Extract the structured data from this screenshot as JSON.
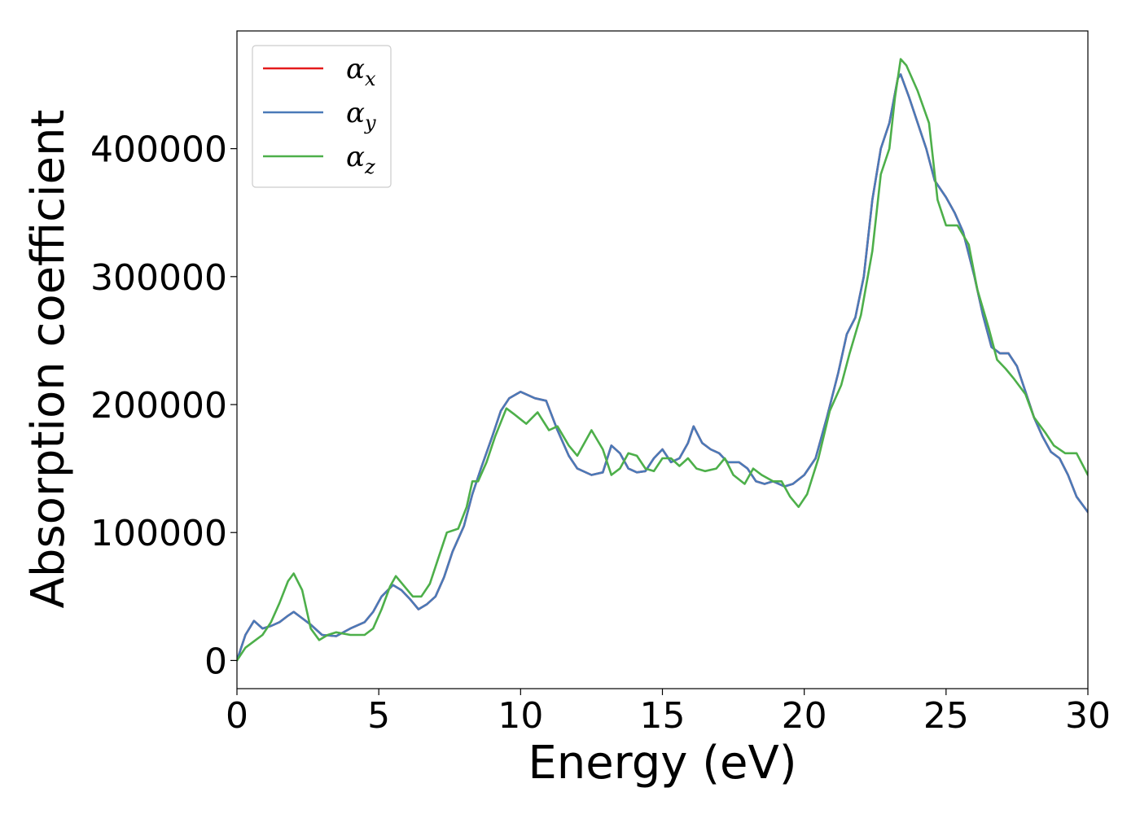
{
  "chart_data": {
    "type": "line",
    "xlabel": "Energy (eV)",
    "ylabel": "Absorption coefficient",
    "xlim": [
      0,
      30
    ],
    "ylim": [
      -22000,
      492000
    ],
    "xticks": [
      {
        "value": 0,
        "label": "0"
      },
      {
        "value": 5,
        "label": "5"
      },
      {
        "value": 10,
        "label": "10"
      },
      {
        "value": 15,
        "label": "15"
      },
      {
        "value": 20,
        "label": "20"
      },
      {
        "value": 25,
        "label": "25"
      },
      {
        "value": 30,
        "label": "30"
      }
    ],
    "yticks": [
      {
        "value": 0,
        "label": "0"
      },
      {
        "value": 100000,
        "label": "100000"
      },
      {
        "value": 200000,
        "label": "200000"
      },
      {
        "value": 300000,
        "label": "300000"
      },
      {
        "value": 400000,
        "label": "400000"
      }
    ],
    "grid": false,
    "legend_position": "top-left",
    "series": [
      {
        "name": "α",
        "subscript": "x",
        "color": "#e41a1c",
        "points": [
          [
            0,
            0
          ],
          [
            0.3,
            20000
          ],
          [
            0.6,
            31000
          ],
          [
            0.9,
            25000
          ],
          [
            1.2,
            27000
          ],
          [
            1.5,
            30000
          ],
          [
            1.8,
            35000
          ],
          [
            2.0,
            38000
          ],
          [
            2.3,
            33000
          ],
          [
            2.6,
            28000
          ],
          [
            3.0,
            20000
          ],
          [
            3.5,
            19000
          ],
          [
            4.0,
            25000
          ],
          [
            4.5,
            30000
          ],
          [
            4.8,
            38000
          ],
          [
            5.1,
            50000
          ],
          [
            5.5,
            59000
          ],
          [
            5.8,
            55000
          ],
          [
            6.1,
            48000
          ],
          [
            6.4,
            40000
          ],
          [
            6.7,
            44000
          ],
          [
            7.0,
            50000
          ],
          [
            7.3,
            65000
          ],
          [
            7.6,
            85000
          ],
          [
            8.0,
            105000
          ],
          [
            8.3,
            130000
          ],
          [
            8.6,
            150000
          ],
          [
            9.0,
            175000
          ],
          [
            9.3,
            195000
          ],
          [
            9.6,
            205000
          ],
          [
            10.0,
            210000
          ],
          [
            10.5,
            205000
          ],
          [
            10.9,
            203000
          ],
          [
            11.3,
            180000
          ],
          [
            11.7,
            160000
          ],
          [
            12.0,
            150000
          ],
          [
            12.5,
            145000
          ],
          [
            12.9,
            147000
          ],
          [
            13.2,
            168000
          ],
          [
            13.5,
            162000
          ],
          [
            13.8,
            150000
          ],
          [
            14.1,
            147000
          ],
          [
            14.4,
            148000
          ],
          [
            14.7,
            158000
          ],
          [
            15.0,
            165000
          ],
          [
            15.3,
            155000
          ],
          [
            15.6,
            158000
          ],
          [
            15.9,
            170000
          ],
          [
            16.1,
            183000
          ],
          [
            16.4,
            170000
          ],
          [
            16.7,
            165000
          ],
          [
            17.0,
            162000
          ],
          [
            17.3,
            155000
          ],
          [
            17.7,
            155000
          ],
          [
            18.0,
            150000
          ],
          [
            18.3,
            140000
          ],
          [
            18.6,
            138000
          ],
          [
            18.9,
            140000
          ],
          [
            19.3,
            136000
          ],
          [
            19.6,
            138000
          ],
          [
            20.0,
            145000
          ],
          [
            20.4,
            158000
          ],
          [
            20.8,
            190000
          ],
          [
            21.2,
            225000
          ],
          [
            21.5,
            255000
          ],
          [
            21.8,
            268000
          ],
          [
            22.1,
            300000
          ],
          [
            22.4,
            360000
          ],
          [
            22.7,
            400000
          ],
          [
            23.0,
            420000
          ],
          [
            23.3,
            455000
          ],
          [
            23.4,
            458000
          ],
          [
            23.7,
            440000
          ],
          [
            24.0,
            420000
          ],
          [
            24.3,
            400000
          ],
          [
            24.6,
            375000
          ],
          [
            25.0,
            362000
          ],
          [
            25.3,
            350000
          ],
          [
            25.6,
            335000
          ],
          [
            26.0,
            300000
          ],
          [
            26.3,
            270000
          ],
          [
            26.6,
            245000
          ],
          [
            26.9,
            240000
          ],
          [
            27.2,
            240000
          ],
          [
            27.5,
            230000
          ],
          [
            27.8,
            210000
          ],
          [
            28.1,
            190000
          ],
          [
            28.4,
            175000
          ],
          [
            28.7,
            163000
          ],
          [
            29.0,
            158000
          ],
          [
            29.3,
            145000
          ],
          [
            29.6,
            128000
          ],
          [
            30.0,
            116000
          ]
        ]
      },
      {
        "name": "α",
        "subscript": "y",
        "color": "#4a7ab8",
        "points": [
          [
            0,
            0
          ],
          [
            0.3,
            20000
          ],
          [
            0.6,
            31000
          ],
          [
            0.9,
            25000
          ],
          [
            1.2,
            27000
          ],
          [
            1.5,
            30000
          ],
          [
            1.8,
            35000
          ],
          [
            2.0,
            38000
          ],
          [
            2.3,
            33000
          ],
          [
            2.6,
            28000
          ],
          [
            3.0,
            20000
          ],
          [
            3.5,
            19000
          ],
          [
            4.0,
            25000
          ],
          [
            4.5,
            30000
          ],
          [
            4.8,
            38000
          ],
          [
            5.1,
            50000
          ],
          [
            5.5,
            59000
          ],
          [
            5.8,
            55000
          ],
          [
            6.1,
            48000
          ],
          [
            6.4,
            40000
          ],
          [
            6.7,
            44000
          ],
          [
            7.0,
            50000
          ],
          [
            7.3,
            65000
          ],
          [
            7.6,
            85000
          ],
          [
            8.0,
            105000
          ],
          [
            8.3,
            130000
          ],
          [
            8.6,
            150000
          ],
          [
            9.0,
            175000
          ],
          [
            9.3,
            195000
          ],
          [
            9.6,
            205000
          ],
          [
            10.0,
            210000
          ],
          [
            10.5,
            205000
          ],
          [
            10.9,
            203000
          ],
          [
            11.3,
            180000
          ],
          [
            11.7,
            160000
          ],
          [
            12.0,
            150000
          ],
          [
            12.5,
            145000
          ],
          [
            12.9,
            147000
          ],
          [
            13.2,
            168000
          ],
          [
            13.5,
            162000
          ],
          [
            13.8,
            150000
          ],
          [
            14.1,
            147000
          ],
          [
            14.4,
            148000
          ],
          [
            14.7,
            158000
          ],
          [
            15.0,
            165000
          ],
          [
            15.3,
            155000
          ],
          [
            15.6,
            158000
          ],
          [
            15.9,
            170000
          ],
          [
            16.1,
            183000
          ],
          [
            16.4,
            170000
          ],
          [
            16.7,
            165000
          ],
          [
            17.0,
            162000
          ],
          [
            17.3,
            155000
          ],
          [
            17.7,
            155000
          ],
          [
            18.0,
            150000
          ],
          [
            18.3,
            140000
          ],
          [
            18.6,
            138000
          ],
          [
            18.9,
            140000
          ],
          [
            19.3,
            136000
          ],
          [
            19.6,
            138000
          ],
          [
            20.0,
            145000
          ],
          [
            20.4,
            158000
          ],
          [
            20.8,
            190000
          ],
          [
            21.2,
            225000
          ],
          [
            21.5,
            255000
          ],
          [
            21.8,
            268000
          ],
          [
            22.1,
            300000
          ],
          [
            22.4,
            360000
          ],
          [
            22.7,
            400000
          ],
          [
            23.0,
            420000
          ],
          [
            23.3,
            455000
          ],
          [
            23.4,
            458000
          ],
          [
            23.7,
            440000
          ],
          [
            24.0,
            420000
          ],
          [
            24.3,
            400000
          ],
          [
            24.6,
            375000
          ],
          [
            25.0,
            362000
          ],
          [
            25.3,
            350000
          ],
          [
            25.6,
            335000
          ],
          [
            26.0,
            300000
          ],
          [
            26.3,
            270000
          ],
          [
            26.6,
            245000
          ],
          [
            26.9,
            240000
          ],
          [
            27.2,
            240000
          ],
          [
            27.5,
            230000
          ],
          [
            27.8,
            210000
          ],
          [
            28.1,
            190000
          ],
          [
            28.4,
            175000
          ],
          [
            28.7,
            163000
          ],
          [
            29.0,
            158000
          ],
          [
            29.3,
            145000
          ],
          [
            29.6,
            128000
          ],
          [
            30.0,
            116000
          ]
        ]
      },
      {
        "name": "α",
        "subscript": "z",
        "color": "#4daf4a",
        "points": [
          [
            0,
            0
          ],
          [
            0.3,
            10000
          ],
          [
            0.6,
            15000
          ],
          [
            0.9,
            20000
          ],
          [
            1.2,
            30000
          ],
          [
            1.5,
            45000
          ],
          [
            1.8,
            62000
          ],
          [
            2.0,
            68000
          ],
          [
            2.3,
            55000
          ],
          [
            2.6,
            25000
          ],
          [
            2.9,
            16000
          ],
          [
            3.2,
            20000
          ],
          [
            3.5,
            22000
          ],
          [
            4.0,
            20000
          ],
          [
            4.5,
            20000
          ],
          [
            4.8,
            25000
          ],
          [
            5.1,
            40000
          ],
          [
            5.4,
            58000
          ],
          [
            5.6,
            66000
          ],
          [
            5.9,
            58000
          ],
          [
            6.2,
            50000
          ],
          [
            6.5,
            50000
          ],
          [
            6.8,
            60000
          ],
          [
            7.1,
            80000
          ],
          [
            7.4,
            100000
          ],
          [
            7.8,
            103000
          ],
          [
            8.1,
            120000
          ],
          [
            8.3,
            140000
          ],
          [
            8.5,
            140000
          ],
          [
            8.8,
            155000
          ],
          [
            9.1,
            175000
          ],
          [
            9.5,
            197000
          ],
          [
            9.8,
            192000
          ],
          [
            10.2,
            185000
          ],
          [
            10.6,
            194000
          ],
          [
            11.0,
            180000
          ],
          [
            11.3,
            183000
          ],
          [
            11.7,
            168000
          ],
          [
            12.0,
            160000
          ],
          [
            12.5,
            180000
          ],
          [
            12.9,
            165000
          ],
          [
            13.2,
            145000
          ],
          [
            13.5,
            150000
          ],
          [
            13.8,
            162000
          ],
          [
            14.1,
            160000
          ],
          [
            14.4,
            150000
          ],
          [
            14.7,
            148000
          ],
          [
            15.0,
            158000
          ],
          [
            15.3,
            158000
          ],
          [
            15.6,
            152000
          ],
          [
            15.9,
            158000
          ],
          [
            16.2,
            150000
          ],
          [
            16.5,
            148000
          ],
          [
            16.9,
            150000
          ],
          [
            17.2,
            158000
          ],
          [
            17.5,
            145000
          ],
          [
            17.9,
            138000
          ],
          [
            18.2,
            150000
          ],
          [
            18.5,
            145000
          ],
          [
            18.9,
            140000
          ],
          [
            19.2,
            140000
          ],
          [
            19.5,
            128000
          ],
          [
            19.8,
            120000
          ],
          [
            20.1,
            130000
          ],
          [
            20.5,
            158000
          ],
          [
            20.9,
            195000
          ],
          [
            21.3,
            215000
          ],
          [
            21.6,
            240000
          ],
          [
            22.0,
            270000
          ],
          [
            22.4,
            320000
          ],
          [
            22.7,
            380000
          ],
          [
            23.0,
            400000
          ],
          [
            23.2,
            440000
          ],
          [
            23.4,
            470000
          ],
          [
            23.6,
            465000
          ],
          [
            24.0,
            445000
          ],
          [
            24.4,
            420000
          ],
          [
            24.7,
            360000
          ],
          [
            25.0,
            340000
          ],
          [
            25.4,
            340000
          ],
          [
            25.8,
            325000
          ],
          [
            26.1,
            290000
          ],
          [
            26.5,
            260000
          ],
          [
            26.8,
            235000
          ],
          [
            27.1,
            228000
          ],
          [
            27.4,
            220000
          ],
          [
            27.8,
            208000
          ],
          [
            28.1,
            190000
          ],
          [
            28.5,
            178000
          ],
          [
            28.8,
            168000
          ],
          [
            29.2,
            162000
          ],
          [
            29.6,
            162000
          ],
          [
            30.0,
            145000
          ]
        ]
      }
    ]
  }
}
